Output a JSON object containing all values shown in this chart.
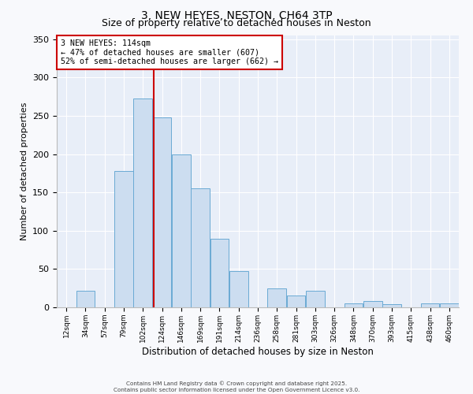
{
  "title": "3, NEW HEYES, NESTON, CH64 3TP",
  "subtitle": "Size of property relative to detached houses in Neston",
  "xlabel": "Distribution of detached houses by size in Neston",
  "ylabel": "Number of detached properties",
  "bar_color": "#ccddf0",
  "bar_edge_color": "#6aaad4",
  "fig_facecolor": "#f8f9fc",
  "ax_facecolor": "#e8eef8",
  "grid_color": "#ffffff",
  "vline_color": "#cc0000",
  "annotation_box_facecolor": "#ffffff",
  "annotation_box_edgecolor": "#cc0000",
  "annotation_title": "3 NEW HEYES: 114sqm",
  "annotation_line1": "← 47% of detached houses are smaller (607)",
  "annotation_line2": "52% of semi-detached houses are larger (662) →",
  "tick_labels": [
    "12sqm",
    "34sqm",
    "57sqm",
    "79sqm",
    "102sqm",
    "124sqm",
    "146sqm",
    "169sqm",
    "191sqm",
    "214sqm",
    "236sqm",
    "258sqm",
    "281sqm",
    "303sqm",
    "326sqm",
    "348sqm",
    "370sqm",
    "393sqm",
    "415sqm",
    "438sqm",
    "460sqm"
  ],
  "bin_heights": [
    0,
    22,
    0,
    178,
    273,
    248,
    200,
    155,
    90,
    47,
    0,
    25,
    15,
    22,
    0,
    5,
    8,
    4,
    0,
    5,
    5
  ],
  "vline_bin_index": 4.545,
  "ylim": [
    0,
    355
  ],
  "yticks": [
    0,
    50,
    100,
    150,
    200,
    250,
    300,
    350
  ],
  "footer1": "Contains HM Land Registry data © Crown copyright and database right 2025.",
  "footer2": "Contains public sector information licensed under the Open Government Licence v3.0."
}
